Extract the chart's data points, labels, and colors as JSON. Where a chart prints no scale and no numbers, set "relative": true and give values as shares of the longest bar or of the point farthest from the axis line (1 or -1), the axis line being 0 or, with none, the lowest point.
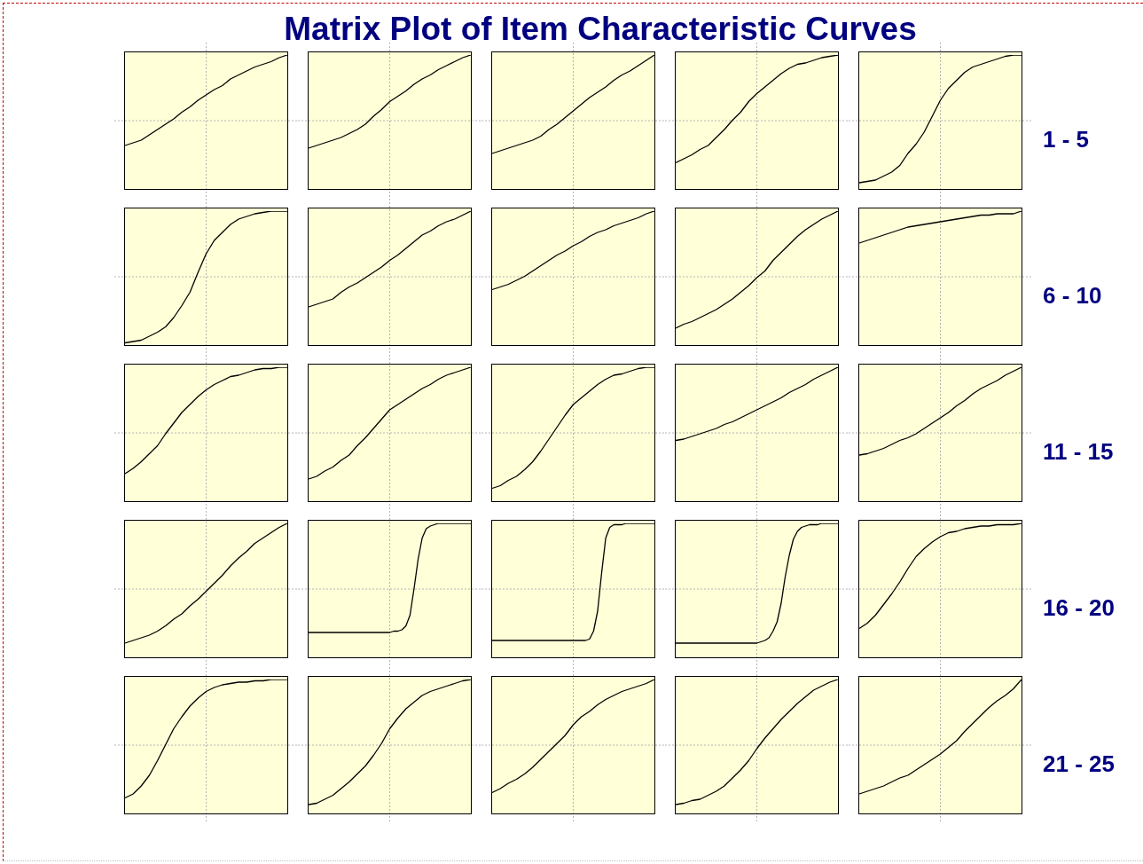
{
  "chart_data": [
    {
      "type": "line",
      "relative": true,
      "grid": true,
      "color": "#000000",
      "categories": [
        null,
        null,
        null,
        null,
        null,
        null,
        null,
        null,
        null,
        null,
        null,
        null,
        null,
        null,
        null,
        null,
        null,
        null,
        null,
        null,
        null
      ],
      "values": [
        0.32,
        0.34,
        0.36,
        0.4,
        0.44,
        0.48,
        0.52,
        0.57,
        0.61,
        0.66,
        0.7,
        0.74,
        0.77,
        0.82,
        0.85,
        0.88,
        0.91,
        0.93,
        0.95,
        0.98,
        1
      ]
    },
    {
      "type": "line",
      "relative": true,
      "grid": true,
      "color": "#000000",
      "categories": [
        null,
        null,
        null,
        null,
        null,
        null,
        null,
        null,
        null,
        null,
        null,
        null,
        null,
        null,
        null,
        null,
        null,
        null,
        null,
        null,
        null
      ],
      "values": [
        0.3,
        0.32,
        0.34,
        0.36,
        0.38,
        0.41,
        0.44,
        0.48,
        0.54,
        0.59,
        0.65,
        0.69,
        0.73,
        0.78,
        0.82,
        0.85,
        0.89,
        0.92,
        0.95,
        0.98,
        1
      ]
    },
    {
      "type": "line",
      "title": "Matrix Plot of Item Characteristic Curves",
      "relative": true,
      "grid": true,
      "color": "#000000",
      "categories": [
        null,
        null,
        null,
        null,
        null,
        null,
        null,
        null,
        null,
        null,
        null,
        null,
        null,
        null,
        null,
        null,
        null,
        null,
        null,
        null,
        null
      ],
      "values": [
        0.26,
        0.28,
        0.3,
        0.32,
        0.34,
        0.36,
        0.39,
        0.44,
        0.48,
        0.53,
        0.58,
        0.63,
        0.68,
        0.72,
        0.76,
        0.81,
        0.85,
        0.88,
        0.92,
        0.96,
        1
      ]
    },
    {
      "type": "line",
      "relative": true,
      "grid": true,
      "color": "#000000",
      "categories": [
        null,
        null,
        null,
        null,
        null,
        null,
        null,
        null,
        null,
        null,
        null,
        null,
        null,
        null,
        null,
        null,
        null,
        null,
        null,
        null,
        null
      ],
      "values": [
        0.19,
        0.22,
        0.25,
        0.29,
        0.32,
        0.38,
        0.44,
        0.51,
        0.57,
        0.65,
        0.71,
        0.76,
        0.81,
        0.86,
        0.9,
        0.93,
        0.94,
        0.96,
        0.98,
        0.99,
        1
      ]
    },
    {
      "type": "line",
      "relative": true,
      "grid": true,
      "color": "#000000",
      "annotations": [
        "1 - 5"
      ],
      "categories": [
        null,
        null,
        null,
        null,
        null,
        null,
        null,
        null,
        null,
        null,
        null,
        null,
        null,
        null,
        null,
        null,
        null,
        null,
        null,
        null,
        null
      ],
      "values": [
        0.04,
        0.05,
        0.06,
        0.09,
        0.12,
        0.17,
        0.26,
        0.33,
        0.42,
        0.54,
        0.66,
        0.75,
        0.81,
        0.87,
        0.91,
        0.93,
        0.95,
        0.97,
        0.99,
        1,
        1
      ]
    },
    {
      "type": "line",
      "relative": true,
      "grid": true,
      "color": "#000000",
      "categories": [
        null,
        null,
        null,
        null,
        null,
        null,
        null,
        null,
        null,
        null,
        null,
        null,
        null,
        null,
        null,
        null,
        null,
        null,
        null,
        null,
        null
      ],
      "values": [
        0.01,
        0.02,
        0.03,
        0.06,
        0.09,
        0.13,
        0.2,
        0.29,
        0.39,
        0.54,
        0.68,
        0.78,
        0.84,
        0.9,
        0.94,
        0.96,
        0.98,
        0.99,
        1,
        1,
        1
      ]
    },
    {
      "type": "line",
      "relative": true,
      "grid": true,
      "color": "#000000",
      "categories": [
        null,
        null,
        null,
        null,
        null,
        null,
        null,
        null,
        null,
        null,
        null,
        null,
        null,
        null,
        null,
        null,
        null,
        null,
        null,
        null,
        null
      ],
      "values": [
        0.28,
        0.3,
        0.32,
        0.34,
        0.39,
        0.43,
        0.46,
        0.5,
        0.54,
        0.58,
        0.63,
        0.67,
        0.72,
        0.77,
        0.82,
        0.85,
        0.89,
        0.92,
        0.94,
        0.97,
        1
      ]
    },
    {
      "type": "line",
      "relative": true,
      "grid": true,
      "color": "#000000",
      "categories": [
        null,
        null,
        null,
        null,
        null,
        null,
        null,
        null,
        null,
        null,
        null,
        null,
        null,
        null,
        null,
        null,
        null,
        null,
        null,
        null,
        null
      ],
      "values": [
        0.41,
        0.43,
        0.45,
        0.48,
        0.51,
        0.55,
        0.59,
        0.63,
        0.67,
        0.7,
        0.74,
        0.77,
        0.81,
        0.84,
        0.86,
        0.89,
        0.91,
        0.93,
        0.95,
        0.98,
        1
      ]
    },
    {
      "type": "line",
      "relative": true,
      "grid": true,
      "color": "#000000",
      "categories": [
        null,
        null,
        null,
        null,
        null,
        null,
        null,
        null,
        null,
        null,
        null,
        null,
        null,
        null,
        null,
        null,
        null,
        null,
        null,
        null,
        null
      ],
      "values": [
        0.12,
        0.15,
        0.17,
        0.2,
        0.23,
        0.26,
        0.3,
        0.34,
        0.39,
        0.44,
        0.5,
        0.55,
        0.63,
        0.69,
        0.75,
        0.81,
        0.86,
        0.9,
        0.94,
        0.97,
        1
      ]
    },
    {
      "type": "line",
      "relative": true,
      "grid": true,
      "color": "#000000",
      "annotations": [
        "6 - 10"
      ],
      "categories": [
        null,
        null,
        null,
        null,
        null,
        null,
        null,
        null,
        null,
        null,
        null,
        null,
        null,
        null,
        null,
        null,
        null,
        null,
        null,
        null,
        null
      ],
      "values": [
        0.76,
        0.78,
        0.8,
        0.82,
        0.84,
        0.86,
        0.88,
        0.89,
        0.9,
        0.91,
        0.92,
        0.93,
        0.94,
        0.95,
        0.96,
        0.97,
        0.97,
        0.98,
        0.98,
        0.98,
        1
      ]
    },
    {
      "type": "line",
      "relative": true,
      "grid": true,
      "color": "#000000",
      "categories": [
        null,
        null,
        null,
        null,
        null,
        null,
        null,
        null,
        null,
        null,
        null,
        null,
        null,
        null,
        null,
        null,
        null,
        null,
        null,
        null,
        null
      ],
      "values": [
        0.2,
        0.24,
        0.29,
        0.35,
        0.41,
        0.5,
        0.58,
        0.66,
        0.72,
        0.78,
        0.83,
        0.87,
        0.9,
        0.93,
        0.94,
        0.96,
        0.98,
        0.99,
        0.99,
        1,
        1
      ]
    },
    {
      "type": "line",
      "relative": true,
      "grid": true,
      "color": "#000000",
      "categories": [
        null,
        null,
        null,
        null,
        null,
        null,
        null,
        null,
        null,
        null,
        null,
        null,
        null,
        null,
        null,
        null,
        null,
        null,
        null,
        null,
        null
      ],
      "values": [
        0.16,
        0.18,
        0.22,
        0.25,
        0.3,
        0.34,
        0.41,
        0.47,
        0.54,
        0.61,
        0.68,
        0.72,
        0.76,
        0.8,
        0.84,
        0.87,
        0.91,
        0.94,
        0.96,
        0.98,
        1
      ]
    },
    {
      "type": "line",
      "relative": true,
      "grid": true,
      "color": "#000000",
      "categories": [
        null,
        null,
        null,
        null,
        null,
        null,
        null,
        null,
        null,
        null,
        null,
        null,
        null,
        null,
        null,
        null,
        null,
        null,
        null,
        null,
        null
      ],
      "values": [
        0.09,
        0.11,
        0.15,
        0.18,
        0.23,
        0.29,
        0.37,
        0.46,
        0.55,
        0.64,
        0.72,
        0.77,
        0.82,
        0.87,
        0.91,
        0.94,
        0.95,
        0.97,
        0.99,
        1,
        1
      ]
    },
    {
      "type": "line",
      "relative": true,
      "grid": true,
      "color": "#000000",
      "categories": [
        null,
        null,
        null,
        null,
        null,
        null,
        null,
        null,
        null,
        null,
        null,
        null,
        null,
        null,
        null,
        null,
        null,
        null,
        null,
        null,
        null
      ],
      "values": [
        0.45,
        0.46,
        0.48,
        0.5,
        0.52,
        0.54,
        0.57,
        0.59,
        0.62,
        0.65,
        0.68,
        0.71,
        0.74,
        0.77,
        0.81,
        0.84,
        0.87,
        0.91,
        0.94,
        0.97,
        1
      ]
    },
    {
      "type": "line",
      "relative": true,
      "grid": true,
      "color": "#000000",
      "annotations": [
        "11 - 15"
      ],
      "categories": [
        null,
        null,
        null,
        null,
        null,
        null,
        null,
        null,
        null,
        null,
        null,
        null,
        null,
        null,
        null,
        null,
        null,
        null,
        null,
        null,
        null
      ],
      "values": [
        0.34,
        0.35,
        0.37,
        0.39,
        0.42,
        0.45,
        0.47,
        0.5,
        0.54,
        0.58,
        0.62,
        0.66,
        0.71,
        0.75,
        0.8,
        0.84,
        0.87,
        0.9,
        0.94,
        0.97,
        1
      ]
    },
    {
      "type": "line",
      "relative": true,
      "grid": true,
      "color": "#000000",
      "categories": [
        null,
        null,
        null,
        null,
        null,
        null,
        null,
        null,
        null,
        null,
        null,
        null,
        null,
        null,
        null,
        null,
        null,
        null,
        null,
        null,
        null
      ],
      "values": [
        0.1,
        0.12,
        0.14,
        0.16,
        0.19,
        0.23,
        0.28,
        0.32,
        0.38,
        0.43,
        0.49,
        0.55,
        0.61,
        0.68,
        0.74,
        0.79,
        0.85,
        0.89,
        0.93,
        0.97,
        1
      ]
    },
    {
      "type": "line",
      "relative": true,
      "grid": true,
      "color": "#000000",
      "categories": [
        null,
        null,
        null,
        null,
        null,
        null,
        null,
        null,
        null,
        null,
        null,
        null,
        null,
        null,
        null,
        null,
        null,
        null,
        null,
        null,
        null,
        null,
        null,
        null,
        null,
        null,
        null,
        null,
        null,
        null,
        null,
        null,
        null,
        null,
        null,
        null,
        null,
        null,
        null,
        null,
        null
      ],
      "values": [
        0.18,
        0.18,
        0.18,
        0.18,
        0.18,
        0.18,
        0.18,
        0.18,
        0.18,
        0.18,
        0.18,
        0.18,
        0.18,
        0.18,
        0.18,
        0.18,
        0.18,
        0.18,
        0.18,
        0.18,
        0.18,
        0.19,
        0.19,
        0.2,
        0.23,
        0.31,
        0.51,
        0.73,
        0.89,
        0.96,
        0.98,
        0.99,
        1,
        1,
        1,
        1,
        1,
        1,
        1,
        1,
        1
      ]
    },
    {
      "type": "line",
      "relative": true,
      "grid": true,
      "color": "#000000",
      "categories": [
        null,
        null,
        null,
        null,
        null,
        null,
        null,
        null,
        null,
        null,
        null,
        null,
        null,
        null,
        null,
        null,
        null,
        null,
        null,
        null,
        null,
        null,
        null,
        null,
        null,
        null,
        null,
        null,
        null,
        null,
        null,
        null,
        null,
        null,
        null,
        null,
        null,
        null,
        null,
        null,
        null
      ],
      "values": [
        0.12,
        0.12,
        0.12,
        0.12,
        0.12,
        0.12,
        0.12,
        0.12,
        0.12,
        0.12,
        0.12,
        0.12,
        0.12,
        0.12,
        0.12,
        0.12,
        0.12,
        0.12,
        0.12,
        0.12,
        0.12,
        0.12,
        0.12,
        0.12,
        0.13,
        0.19,
        0.34,
        0.63,
        0.89,
        0.97,
        0.99,
        0.99,
        0.99,
        1,
        1,
        1,
        1,
        1,
        1,
        1,
        1
      ]
    },
    {
      "type": "line",
      "relative": true,
      "grid": true,
      "color": "#000000",
      "categories": [
        null,
        null,
        null,
        null,
        null,
        null,
        null,
        null,
        null,
        null,
        null,
        null,
        null,
        null,
        null,
        null,
        null,
        null,
        null,
        null,
        null,
        null,
        null,
        null,
        null,
        null,
        null,
        null,
        null,
        null,
        null,
        null,
        null,
        null,
        null,
        null,
        null,
        null,
        null,
        null,
        null
      ],
      "values": [
        0.1,
        0.1,
        0.1,
        0.1,
        0.1,
        0.1,
        0.1,
        0.1,
        0.1,
        0.1,
        0.1,
        0.1,
        0.1,
        0.1,
        0.1,
        0.1,
        0.1,
        0.1,
        0.1,
        0.1,
        0.1,
        0.11,
        0.12,
        0.14,
        0.19,
        0.26,
        0.4,
        0.6,
        0.76,
        0.88,
        0.94,
        0.97,
        0.98,
        0.99,
        0.99,
        0.99,
        1,
        1,
        1,
        1,
        1
      ]
    },
    {
      "type": "line",
      "relative": true,
      "grid": true,
      "color": "#000000",
      "annotations": [
        "16 - 20"
      ],
      "categories": [
        null,
        null,
        null,
        null,
        null,
        null,
        null,
        null,
        null,
        null,
        null,
        null,
        null,
        null,
        null,
        null,
        null,
        null,
        null,
        null,
        null
      ],
      "values": [
        0.21,
        0.25,
        0.31,
        0.39,
        0.47,
        0.56,
        0.66,
        0.75,
        0.81,
        0.86,
        0.9,
        0.93,
        0.94,
        0.96,
        0.97,
        0.98,
        0.98,
        0.99,
        0.99,
        0.99,
        1
      ]
    },
    {
      "type": "line",
      "relative": true,
      "grid": true,
      "color": "#000000",
      "categories": [
        null,
        null,
        null,
        null,
        null,
        null,
        null,
        null,
        null,
        null,
        null,
        null,
        null,
        null,
        null,
        null,
        null,
        null,
        null,
        null,
        null
      ],
      "values": [
        0.11,
        0.14,
        0.2,
        0.28,
        0.39,
        0.51,
        0.63,
        0.72,
        0.8,
        0.86,
        0.91,
        0.94,
        0.96,
        0.97,
        0.98,
        0.98,
        0.99,
        0.99,
        1,
        1,
        1
      ]
    },
    {
      "type": "line",
      "relative": true,
      "grid": true,
      "color": "#000000",
      "categories": [
        null,
        null,
        null,
        null,
        null,
        null,
        null,
        null,
        null,
        null,
        null,
        null,
        null,
        null,
        null,
        null,
        null,
        null,
        null,
        null,
        null
      ],
      "values": [
        0.06,
        0.07,
        0.1,
        0.13,
        0.18,
        0.23,
        0.29,
        0.35,
        0.43,
        0.52,
        0.63,
        0.71,
        0.78,
        0.83,
        0.88,
        0.91,
        0.93,
        0.95,
        0.97,
        0.99,
        1
      ]
    },
    {
      "type": "line",
      "relative": true,
      "grid": true,
      "color": "#000000",
      "categories": [
        null,
        null,
        null,
        null,
        null,
        null,
        null,
        null,
        null,
        null,
        null,
        null,
        null,
        null,
        null,
        null,
        null,
        null,
        null,
        null,
        null
      ],
      "values": [
        0.15,
        0.18,
        0.22,
        0.25,
        0.29,
        0.34,
        0.4,
        0.46,
        0.52,
        0.58,
        0.66,
        0.72,
        0.76,
        0.81,
        0.85,
        0.88,
        0.91,
        0.93,
        0.95,
        0.97,
        1
      ]
    },
    {
      "type": "line",
      "relative": true,
      "grid": true,
      "color": "#000000",
      "categories": [
        null,
        null,
        null,
        null,
        null,
        null,
        null,
        null,
        null,
        null,
        null,
        null,
        null,
        null,
        null,
        null,
        null,
        null,
        null,
        null,
        null
      ],
      "values": [
        0.06,
        0.07,
        0.09,
        0.1,
        0.13,
        0.16,
        0.2,
        0.26,
        0.32,
        0.39,
        0.48,
        0.56,
        0.63,
        0.7,
        0.76,
        0.82,
        0.87,
        0.92,
        0.95,
        0.98,
        1
      ]
    },
    {
      "type": "line",
      "relative": true,
      "grid": true,
      "color": "#000000",
      "annotations": [
        "21 - 25"
      ],
      "categories": [
        null,
        null,
        null,
        null,
        null,
        null,
        null,
        null,
        null,
        null,
        null,
        null,
        null,
        null,
        null,
        null,
        null,
        null,
        null,
        null,
        null
      ],
      "values": [
        0.14,
        0.16,
        0.18,
        0.2,
        0.23,
        0.26,
        0.28,
        0.32,
        0.36,
        0.4,
        0.44,
        0.49,
        0.54,
        0.61,
        0.67,
        0.73,
        0.79,
        0.84,
        0.88,
        0.93,
        1
      ]
    }
  ]
}
